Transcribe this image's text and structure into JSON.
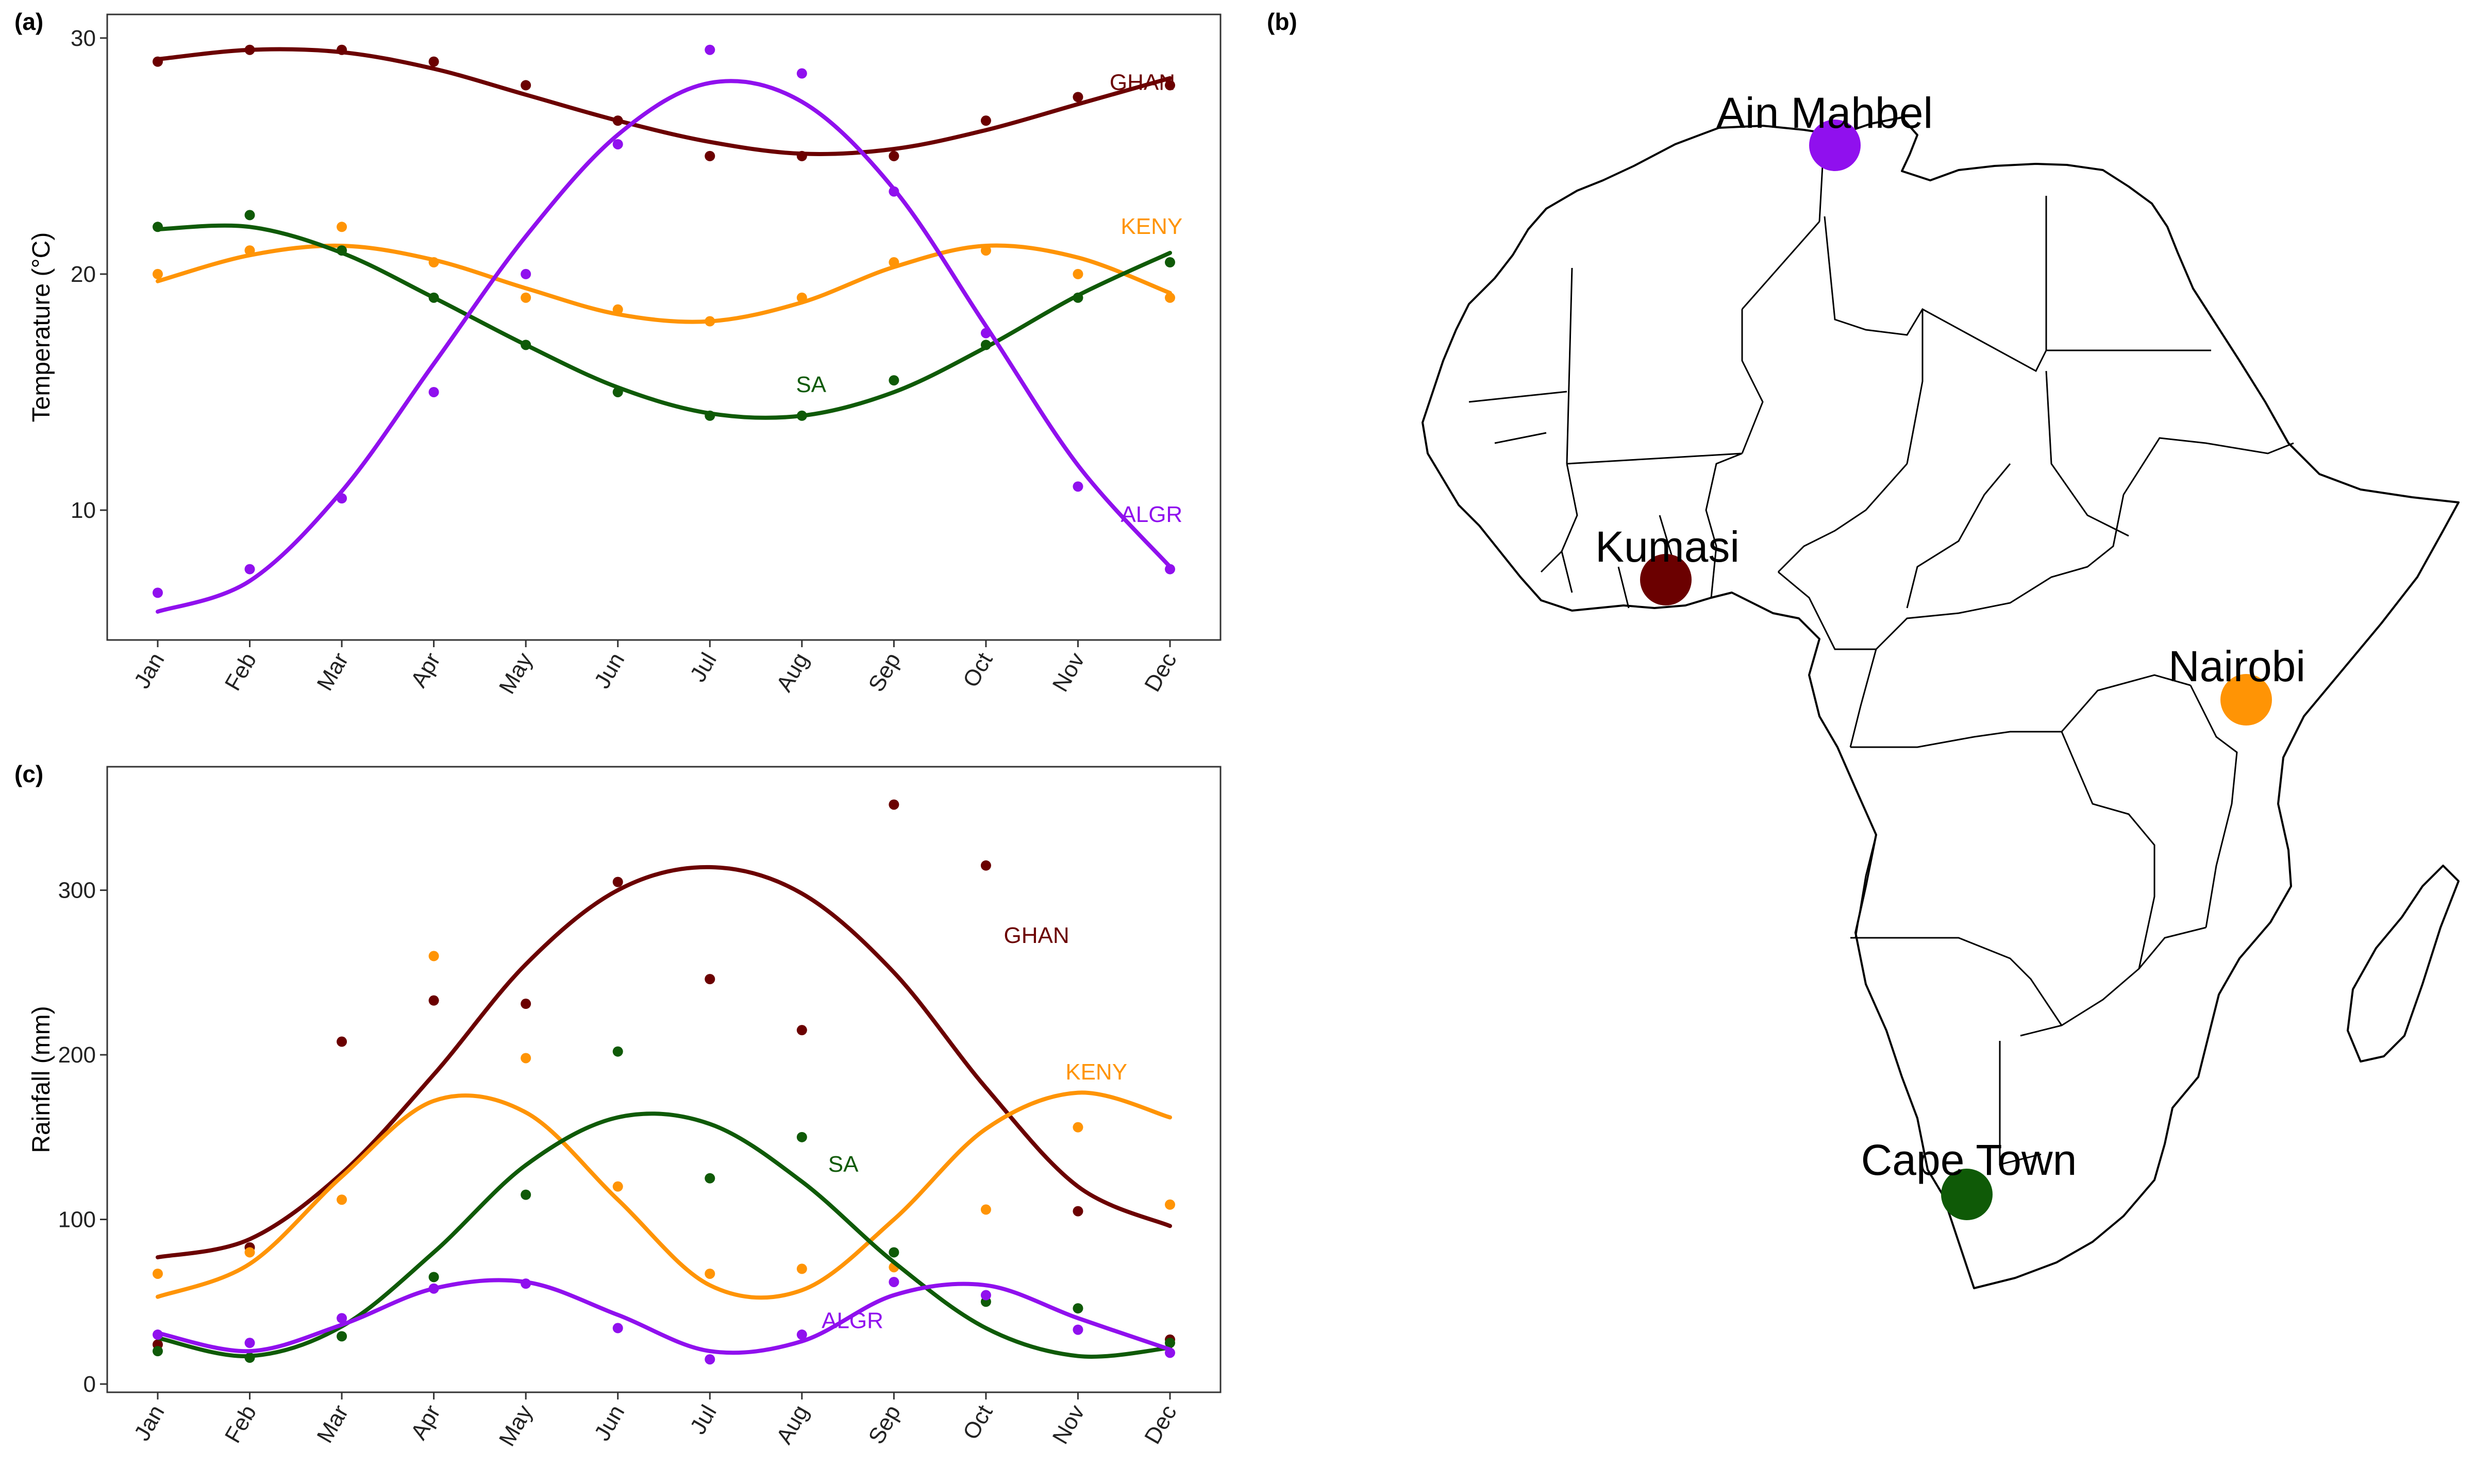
{
  "panels": {
    "a": "(a)",
    "b": "(b)",
    "c": "(c)"
  },
  "colors": {
    "GHAN": "#6b0000",
    "KENY": "#ff9405",
    "SA": "#0f5a07",
    "ALGR": "#9010ee"
  },
  "chart_data": [
    {
      "id": "a",
      "type": "scatter",
      "ylabel": "Temperature (°C)",
      "xlabel": "",
      "categories": [
        "Jan",
        "Feb",
        "Mar",
        "Apr",
        "May",
        "Jun",
        "Jul",
        "Aug",
        "Sep",
        "Oct",
        "Nov",
        "Dec"
      ],
      "ylim": [
        4.5,
        31
      ],
      "yticks": [
        10,
        20,
        30
      ],
      "grid": false,
      "series": [
        {
          "name": "GHAN",
          "color": "#6b0000",
          "points": [
            29,
            29.5,
            29.5,
            29,
            28,
            26.5,
            25,
            25,
            25,
            26.5,
            27.5,
            28
          ],
          "trend": [
            29.1,
            29.5,
            29.4,
            28.7,
            27.6,
            26.5,
            25.6,
            25.1,
            25.3,
            26.1,
            27.2,
            28.3
          ]
        },
        {
          "name": "KENY",
          "color": "#ff9405",
          "points": [
            20,
            21,
            22,
            20.5,
            19,
            18.5,
            18,
            19,
            20.5,
            21,
            20,
            19
          ],
          "trend": [
            19.7,
            20.8,
            21.2,
            20.6,
            19.4,
            18.3,
            18.0,
            18.8,
            20.3,
            21.2,
            20.7,
            19.2
          ]
        },
        {
          "name": "SA",
          "color": "#0f5a07",
          "points": [
            22,
            22.5,
            21,
            19,
            17,
            15,
            14,
            14,
            15.5,
            17,
            19,
            20.5
          ],
          "trend": [
            21.9,
            22.0,
            20.9,
            19.0,
            17.0,
            15.2,
            14.1,
            14.0,
            15.0,
            16.9,
            19.1,
            20.9
          ]
        },
        {
          "name": "ALGR",
          "color": "#9010ee",
          "points": [
            6.5,
            7.5,
            10.5,
            15,
            20,
            25.5,
            29.5,
            28.5,
            23.5,
            17.5,
            11,
            7.5
          ],
          "trend": [
            5.7,
            7.0,
            10.8,
            16.2,
            21.6,
            25.9,
            28.1,
            27.3,
            23.6,
            17.8,
            11.9,
            7.6
          ]
        }
      ]
    },
    {
      "id": "c",
      "type": "scatter",
      "ylabel": "Rainfall (mm)",
      "xlabel": "",
      "categories": [
        "Jan",
        "Feb",
        "Mar",
        "Apr",
        "May",
        "Jun",
        "Jul",
        "Aug",
        "Sep",
        "Oct",
        "Nov",
        "Dec"
      ],
      "ylim": [
        -5,
        375
      ],
      "yticks": [
        0,
        100,
        200,
        300
      ],
      "grid": false,
      "series": [
        {
          "name": "GHAN",
          "color": "#6b0000",
          "points": [
            24,
            83,
            208,
            233,
            231,
            305,
            246,
            215,
            352,
            315,
            105,
            27
          ],
          "trend": [
            77,
            88,
            128,
            188,
            255,
            300,
            314,
            298,
            250,
            180,
            120,
            96
          ]
        },
        {
          "name": "KENY",
          "color": "#ff9405",
          "points": [
            67,
            80,
            112,
            260,
            198,
            120,
            67,
            70,
            71,
            106,
            156,
            109
          ],
          "trend": [
            53,
            73,
            126,
            172,
            165,
            112,
            60,
            57,
            100,
            155,
            177,
            162
          ]
        },
        {
          "name": "SA",
          "color": "#0f5a07",
          "points": [
            20,
            16,
            29,
            65,
            115,
            202,
            125,
            150,
            80,
            50,
            46,
            25
          ],
          "trend": [
            28,
            17,
            35,
            80,
            133,
            162,
            158,
            123,
            74,
            34,
            17,
            22
          ]
        },
        {
          "name": "ALGR",
          "color": "#9010ee",
          "points": [
            30,
            25,
            40,
            58,
            61,
            34,
            15,
            30,
            62,
            54,
            33,
            19
          ],
          "trend": [
            31,
            20,
            36,
            58,
            62,
            42,
            20,
            26,
            54,
            60,
            40,
            21
          ]
        }
      ]
    }
  ],
  "map": {
    "cities": [
      {
        "name": "Ain Mahbel",
        "color": "#9010ee"
      },
      {
        "name": "Kumasi",
        "color": "#6b0000"
      },
      {
        "name": "Nairobi",
        "color": "#ff9405"
      },
      {
        "name": "Cape Town",
        "color": "#0f5a07"
      }
    ]
  }
}
